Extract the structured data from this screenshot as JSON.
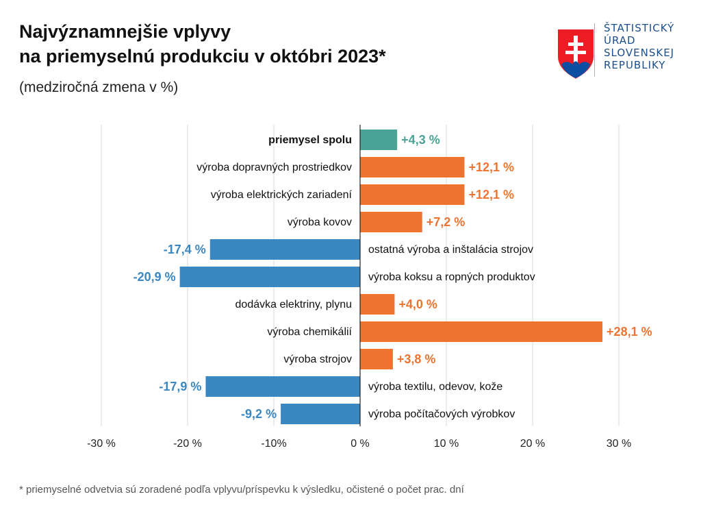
{
  "title_line1": "Najvýznamnejšie vplyvy",
  "title_line2": "na priemyselnú produkciu v októbri 2023*",
  "subtitle": "(medziročná zmena v %)",
  "logo_lines": [
    "ŠTATISTICKÝ",
    "ÚRAD",
    "SLOVENSKEJ",
    "REPUBLIKY"
  ],
  "footnote": "* priemyselné odvetvia sú zoradené podľa vplyvu/príspevku k výsledku, očistené o počet prac. dní",
  "colors": {
    "total": "#4aa394",
    "positive": "#ed7331",
    "negative": "#3a87c2",
    "grid": "#d9d9d9"
  },
  "chart_data": {
    "type": "bar",
    "orientation": "horizontal",
    "xlim": [
      -30,
      30
    ],
    "xticks": [
      -30,
      -20,
      -10,
      0,
      10,
      20,
      30
    ],
    "xtick_labels": [
      "-30 %",
      "-20 %",
      "-10%",
      "0 %",
      "10 %",
      "20 %",
      "30 %"
    ],
    "grid": true,
    "categories": [
      "priemysel spolu",
      "výroba dopravných prostriedkov",
      "výroba elektrických zariadení",
      "výroba kovov",
      "ostatná výroba a inštalácia strojov",
      "výroba koksu a ropných produktov",
      "dodávka elektriny, plynu",
      "výroba chemikálií",
      "výroba strojov",
      "výroba textilu, odevov, kože",
      "výroba počítačových výrobkov"
    ],
    "values": [
      4.3,
      12.1,
      12.1,
      7.2,
      -17.4,
      -20.9,
      4.0,
      28.1,
      3.8,
      -17.9,
      -9.2
    ],
    "value_labels": [
      "+4,3 %",
      "+12,1 %",
      "+12,1 %",
      "+7,2 %",
      "-17,4 %",
      "-20,9 %",
      "+4,0 %",
      "+28,1 %",
      "+3,8 %",
      "-17,9 %",
      "-9,2 %"
    ]
  }
}
